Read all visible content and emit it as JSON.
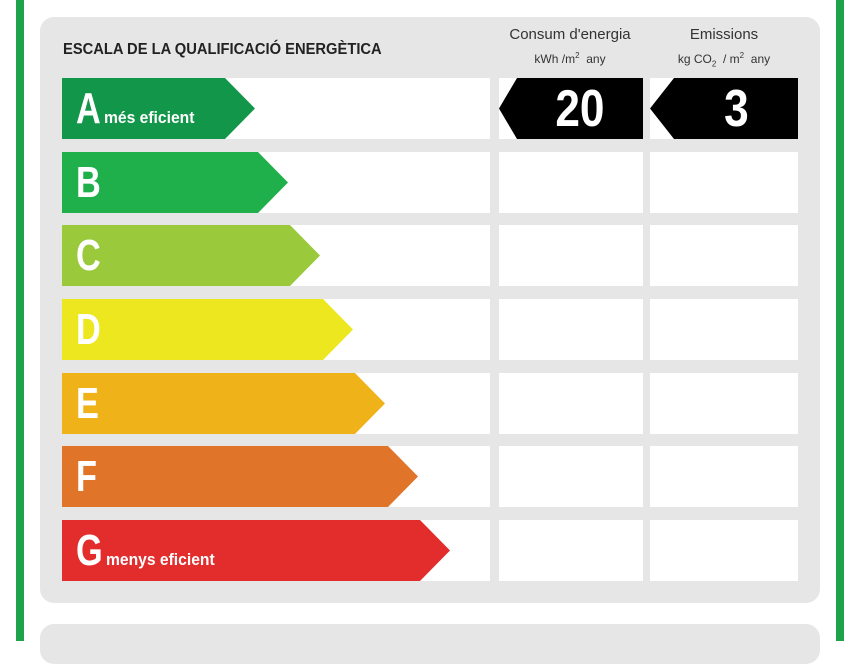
{
  "header": {
    "title": "ESCALA DE LA QUALIFICACIÓ ENERGÈTICA",
    "consum": {
      "line1": "Consum d'energia",
      "unit_a": "kWh /m",
      "unit_sup": "2",
      "unit_b": "  any"
    },
    "emissions": {
      "line1": "Emissions",
      "unit_a": "kg CO",
      "unit_sub": "2",
      "unit_b": "  / m",
      "unit_sup": "2",
      "unit_c": "  any"
    }
  },
  "ratings": [
    {
      "letter": "A",
      "caption": "més eficient",
      "color": "#12964a"
    },
    {
      "letter": "B",
      "caption": "",
      "color": "#20b04b"
    },
    {
      "letter": "C",
      "caption": "",
      "color": "#9ac93b"
    },
    {
      "letter": "D",
      "caption": "",
      "color": "#ece71f"
    },
    {
      "letter": "E",
      "caption": "",
      "color": "#f0b219"
    },
    {
      "letter": "F",
      "caption": "",
      "color": "#e07428"
    },
    {
      "letter": "G",
      "caption": "menys eficient",
      "color": "#e32c2c"
    }
  ],
  "result": {
    "consum_value": "20",
    "emissions_value": "3",
    "rating_row": "A"
  },
  "colors": {
    "frame": "#1ea24a",
    "panel": "#e6e6e6",
    "badge": "#000000"
  }
}
